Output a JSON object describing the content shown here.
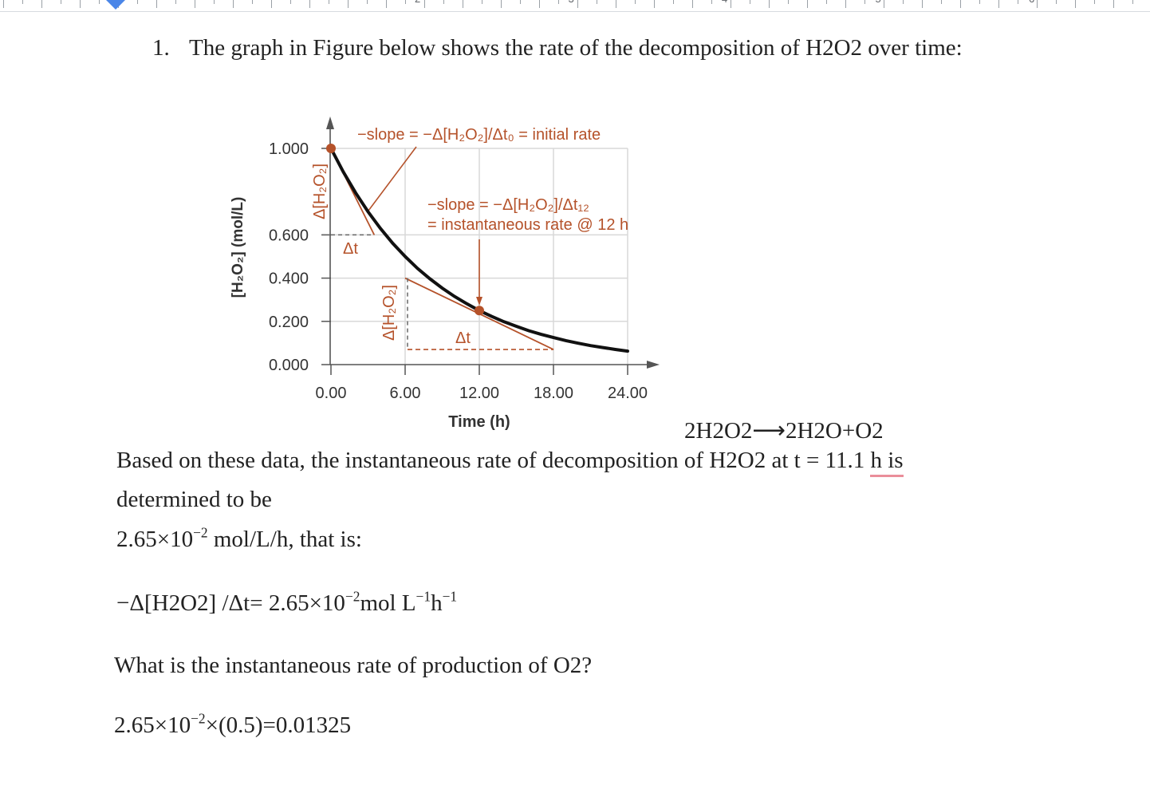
{
  "ruler": {
    "numbers": [
      "2",
      "3",
      "4",
      "5",
      "6"
    ]
  },
  "doc": {
    "question_number": "1.",
    "question_text": "The graph in Figure below shows the rate of the decomposition of  H2O2 over time:",
    "equation": {
      "reactant": "2H2O2",
      "arrow": "⟶",
      "products": "2H2O+O2"
    },
    "paragraph": {
      "part1": "Based on these data, the instantaneous rate of decomposition of  H2O2 at t = 11.1 ",
      "part2_flagged": "h is",
      "line2": "determined to be"
    },
    "rate_value": {
      "mantissa": "2.65×10",
      "exponent": "−2",
      "unit": " mol/L/h, that is:"
    },
    "rate_expression": {
      "lhs": "−Δ[H2O2] /Δt= 2.65×10",
      "exp1": "−2",
      "mid": "mol L",
      "exp2": "−1",
      "h": "h",
      "exp3": "−1"
    },
    "question2": "What is the instantaneous rate of production of O2?",
    "answer": {
      "base": "2.65×10",
      "exponent": "−2",
      "rest": "×(0.5)=0.01325"
    }
  },
  "colors": {
    "accent": "#b5522a",
    "curve": "#111111",
    "grid": "#d8d8d8",
    "spellcheck": "#ea8e9a",
    "ruler_marker": "#4a86e8"
  },
  "chart_data": {
    "type": "line",
    "xlabel": "Time (h)",
    "ylabel": "[H₂O₂] (mol/L)",
    "xlim": [
      0,
      24
    ],
    "ylim": [
      0,
      1.0
    ],
    "x_ticks": [
      "0.00",
      "6.00",
      "12.00",
      "18.00",
      "24.00"
    ],
    "y_ticks": [
      "0.000",
      "0.200",
      "0.400",
      "0.600",
      "1.000"
    ],
    "series": [
      {
        "x": [
          0,
          1,
          2,
          3,
          4,
          5,
          6,
          7,
          8,
          9,
          10,
          11,
          12,
          13,
          14,
          15,
          16,
          17,
          18,
          19,
          20,
          21,
          22,
          23,
          24
        ],
        "y": [
          1.0,
          0.891,
          0.794,
          0.707,
          0.63,
          0.561,
          0.5,
          0.445,
          0.397,
          0.354,
          0.315,
          0.281,
          0.25,
          0.223,
          0.198,
          0.177,
          0.157,
          0.14,
          0.125,
          0.111,
          0.099,
          0.088,
          0.079,
          0.07,
          0.0625
        ]
      }
    ],
    "highlight_points": [
      {
        "x": 0,
        "y": 1.0
      },
      {
        "x": 12,
        "y": 0.25
      }
    ],
    "tangent_lines": [
      {
        "x": [
          0,
          3.5
        ],
        "y": [
          1.0,
          0.6
        ]
      },
      {
        "x": [
          6.0,
          18.0
        ],
        "y": [
          0.4,
          0.07
        ]
      }
    ],
    "annotations": {
      "initial_slope": "−slope = −Δ[H₂O₂]/Δt₀ = initial rate",
      "inst_slope_line1": "−slope = −Δ[H₂O₂]/Δt₁₂",
      "inst_slope_line2": "= instantaneous rate @ 12 h",
      "delta_t": "Δt",
      "delta_conc": "Δ[H₂O₂]"
    }
  }
}
